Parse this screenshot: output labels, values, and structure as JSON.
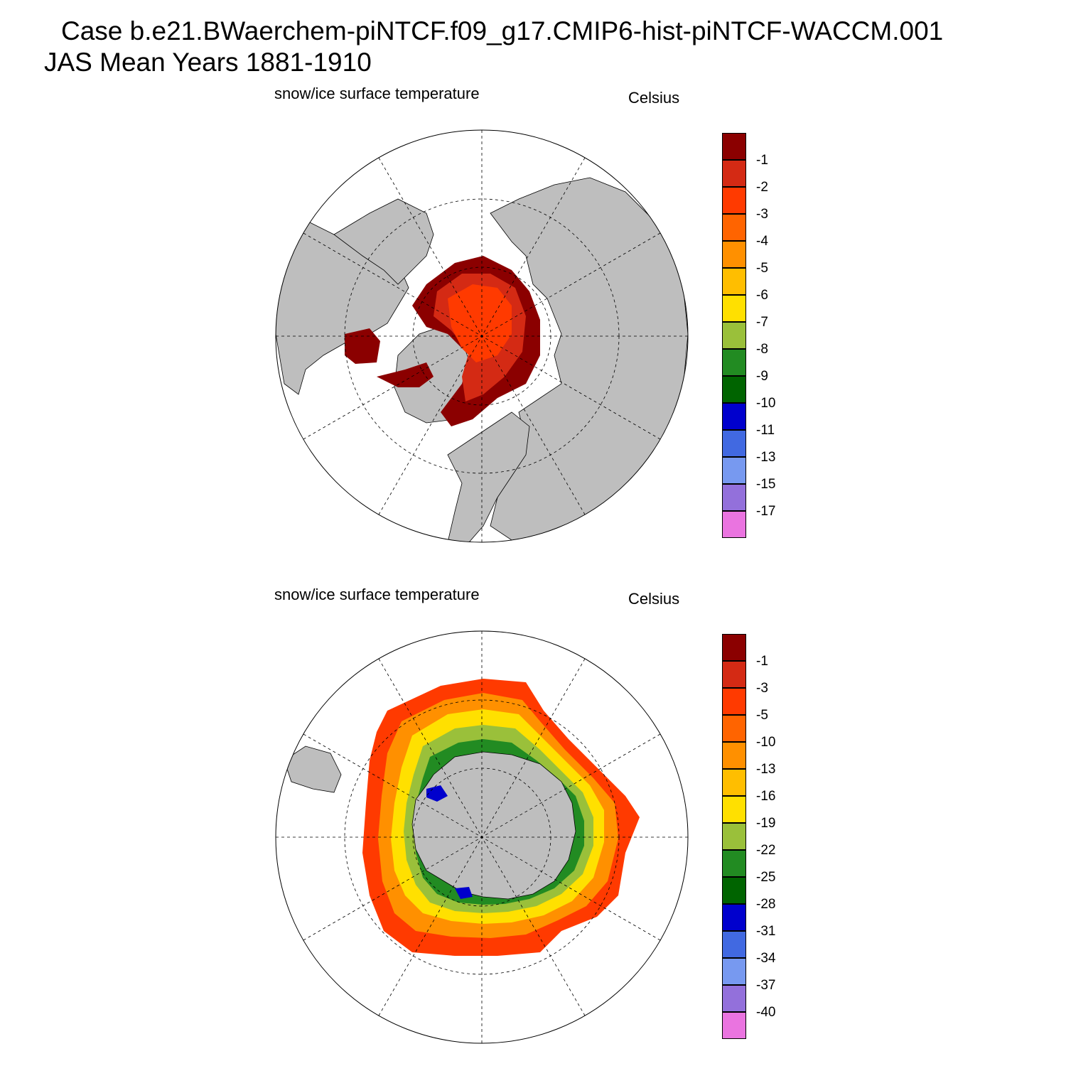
{
  "header": {
    "case_line": "Case b.e21.BWaerchem-piNTCF.f09_g17.CMIP6-hist-piNTCF-WACCM.001",
    "period_line": "JAS Mean   Years 1881-1910"
  },
  "panels": [
    {
      "variable_label": "snow/ice surface temperature",
      "units_label": "Celsius",
      "hemisphere": "north",
      "colorbar": {
        "colors": [
          "#8b0000",
          "#d42a14",
          "#ff3a00",
          "#ff6400",
          "#ff9000",
          "#ffbe00",
          "#ffe000",
          "#9ac03a",
          "#228b22",
          "#006400",
          "#0000cd",
          "#4169e1",
          "#7799f0",
          "#9370db",
          "#ea74e0"
        ],
        "labels": [
          "-1",
          "-2",
          "-3",
          "-4",
          "-5",
          "-6",
          "-7",
          "-8",
          "-9",
          "-10",
          "-11",
          "-13",
          "-15",
          "-17"
        ]
      }
    },
    {
      "variable_label": "snow/ice surface temperature",
      "units_label": "Celsius",
      "hemisphere": "south",
      "colorbar": {
        "colors": [
          "#8b0000",
          "#d42a14",
          "#ff3a00",
          "#ff6400",
          "#ff9000",
          "#ffbe00",
          "#ffe000",
          "#9ac03a",
          "#228b22",
          "#006400",
          "#0000cd",
          "#4169e1",
          "#7799f0",
          "#9370db",
          "#ea74e0"
        ],
        "labels": [
          "-1",
          "-3",
          "-5",
          "-10",
          "-13",
          "-16",
          "-19",
          "-22",
          "-25",
          "-28",
          "-31",
          "-34",
          "-37",
          "-40"
        ]
      }
    }
  ],
  "map_style": {
    "land_color": "#bebebe",
    "ocean_color": "#ffffff",
    "coast_color": "#000000",
    "grid_line": "dashed"
  }
}
